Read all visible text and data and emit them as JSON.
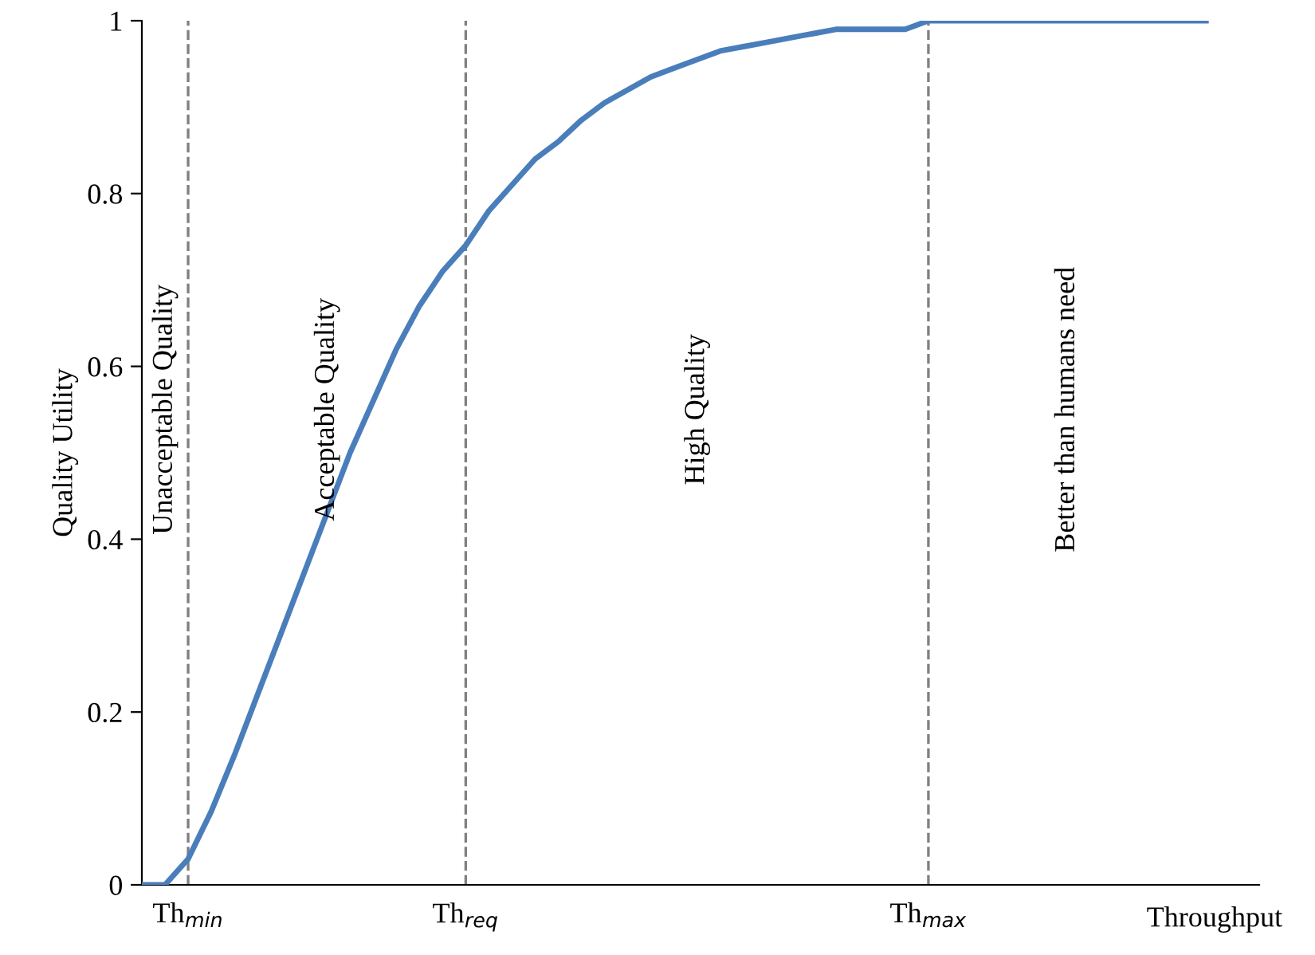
{
  "chart_data": {
    "type": "line",
    "xlabel": "Throughput",
    "ylabel": "Quality Utility",
    "categories": [
      null,
      null,
      "Th$_{min}$",
      null,
      null,
      null,
      null,
      null,
      null,
      null,
      null,
      null,
      null,
      null,
      "Th$_{req}$",
      null,
      null,
      null,
      null,
      null,
      null,
      null,
      null,
      null,
      null,
      null,
      null,
      null,
      null,
      null,
      null,
      null,
      null,
      null,
      "Th$_{max}$",
      null,
      null,
      null,
      null,
      null,
      null,
      null,
      null,
      null,
      null,
      null,
      null
    ],
    "series": [
      {
        "color": "#4a7ebb",
        "values": [
          0,
          0,
          0.03,
          0.085,
          0.15,
          0.22,
          0.29,
          0.36,
          0.43,
          0.5,
          0.56,
          0.62,
          0.67,
          0.71,
          0.74,
          0.78,
          0.81,
          0.84,
          0.86,
          0.885,
          0.905,
          0.92,
          0.935,
          0.945,
          0.955,
          0.965,
          0.97,
          0.975,
          0.98,
          0.985,
          0.99,
          0.99,
          0.99,
          0.99,
          1,
          1,
          1,
          1,
          1,
          1,
          1,
          1,
          1,
          1,
          1,
          1,
          1
        ]
      }
    ],
    "ylim": [
      0,
      1
    ],
    "yticks": [
      0,
      0.2,
      0.4,
      0.6,
      0.8,
      1
    ],
    "ref_lines": [
      {
        "axis": "x",
        "value": "Th$_{min}$",
        "color": "#808080",
        "line_style": "dashed"
      },
      {
        "axis": "x",
        "value": "Th$_{req}$",
        "color": "#808080",
        "line_style": "dashed"
      },
      {
        "axis": "x",
        "value": "Th$_{max}$",
        "color": "#808080",
        "line_style": "dashed"
      }
    ],
    "annotations": [
      "Unacceptable Quality",
      "Acceptable Quality",
      "High Quality",
      "Better than humans need"
    ],
    "grid": false,
    "legend": false,
    "marker": "none",
    "line_style": "solid"
  }
}
